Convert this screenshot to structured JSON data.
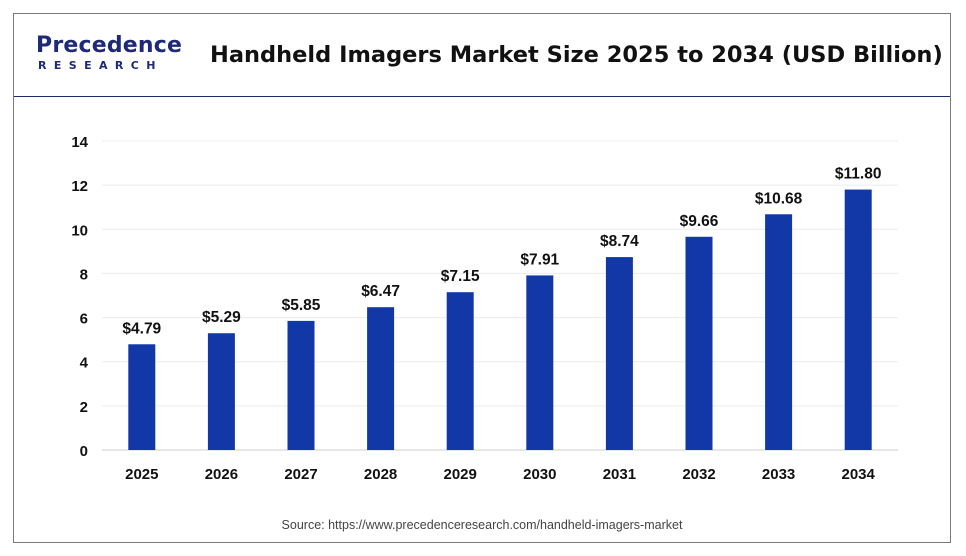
{
  "brand": {
    "logo_top": "Precedence",
    "logo_bottom": "RESEARCH",
    "primary_color": "#1e2a78"
  },
  "source_text": "Source: https://www.precedenceresearch.com/handheld-imagers-market",
  "chart_data": {
    "type": "bar",
    "title": "Handheld Imagers Market Size 2025 to 2034 (USD Billion)",
    "xlabel": "",
    "ylabel": "",
    "categories": [
      "2025",
      "2026",
      "2027",
      "2028",
      "2029",
      "2030",
      "2031",
      "2032",
      "2033",
      "2034"
    ],
    "values": [
      4.79,
      5.29,
      5.85,
      6.47,
      7.15,
      7.91,
      8.74,
      9.66,
      10.68,
      11.8
    ],
    "data_labels": [
      "$4.79",
      "$5.29",
      "$5.85",
      "$6.47",
      "$7.15",
      "$7.91",
      "$8.74",
      "$9.66",
      "$10.68",
      "$11.80"
    ],
    "ylim": [
      0,
      14
    ],
    "yticks": [
      "0",
      "2",
      "4",
      "6",
      "8",
      "10",
      "12",
      "14"
    ],
    "grid": true,
    "legend": "none",
    "bar_color": "#1238a8"
  }
}
